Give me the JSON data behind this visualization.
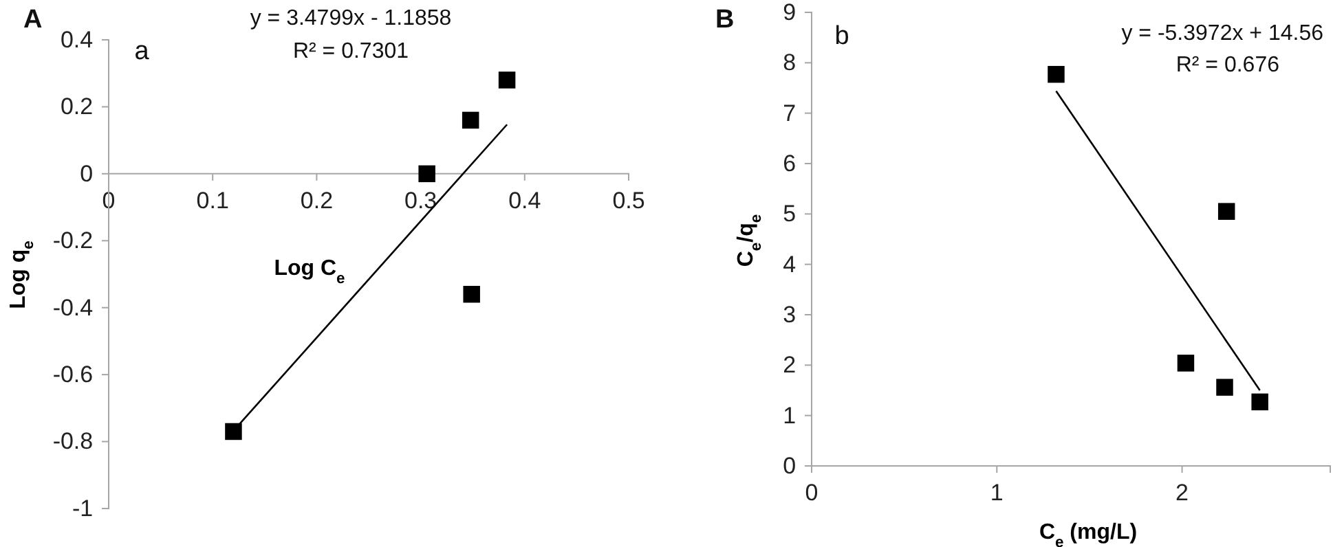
{
  "chart_data": [
    {
      "type": "scatter",
      "xlabel": "Log C$_{e}$",
      "ylabel": "Log q$_{e}$",
      "annotations": [
        "A",
        "a",
        "y = 3.4799x - 1.1858",
        "R² = 0.7301"
      ],
      "xlim": [
        0,
        0.5
      ],
      "ylim": [
        -1,
        0.4
      ],
      "xticks": [
        0,
        0.1,
        0.2,
        0.3,
        0.4,
        0.5
      ],
      "yticks": [
        -1,
        -0.8,
        -0.6,
        -0.4,
        -0.2,
        0,
        0.2,
        0.4
      ],
      "marker": "square",
      "grid": false,
      "series": [
        {
          "color": "#000000",
          "x": [
            0.12,
            0.306,
            0.348,
            0.349,
            0.383
          ],
          "values": [
            -0.77,
            0,
            0.16,
            -0.36,
            0.28
          ]
        },
        {
          "type": "line",
          "color": "#000000",
          "marker": "none",
          "line_style": "solid",
          "x": [
            0.12,
            0.383
          ],
          "values": [
            -0.768,
            0.147
          ]
        }
      ]
    },
    {
      "type": "scatter",
      "xlabel": "C$_{e}$ (mg/L)",
      "ylabel": "C$_{e}$/q$_{e}$",
      "annotations": [
        "B",
        "b",
        "y = -5.3972x + 14.56",
        "R² = 0.676"
      ],
      "xlim": [
        0,
        2.8
      ],
      "ylim": [
        0,
        9
      ],
      "xticks": [
        0,
        1,
        2
      ],
      "yticks": [
        0,
        1,
        2,
        3,
        4,
        5,
        6,
        7,
        8,
        9
      ],
      "marker": "square",
      "grid": false,
      "series": [
        {
          "color": "#000000",
          "x": [
            1.32,
            2.24,
            2.02,
            2.23,
            2.42
          ],
          "values": [
            7.77,
            5.05,
            2.04,
            1.56,
            1.27
          ]
        },
        {
          "type": "line",
          "color": "#000000",
          "marker": "none",
          "line_style": "solid",
          "x": [
            1.32,
            2.42
          ],
          "values": [
            7.44,
            1.5
          ]
        }
      ]
    }
  ]
}
